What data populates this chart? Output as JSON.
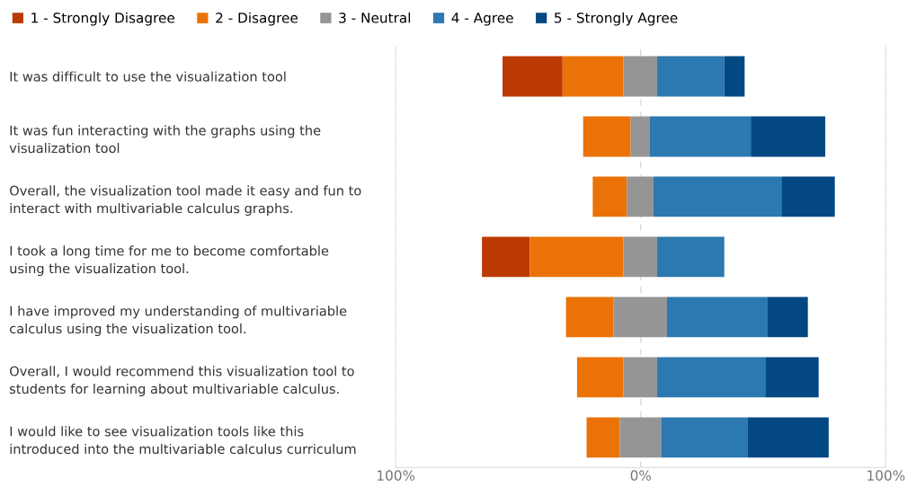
{
  "chart_data": {
    "type": "bar",
    "orientation": "horizontal",
    "stacked": true,
    "categories": [
      "It was difficult to use the visualization tool",
      "It was fun interacting with the graphs using the\nvisualization tool",
      "Overall, the visualization tool made it easy and fun to\ninteract with multivariable calculus graphs.",
      "I took a long time for me to become comfortable\nusing the visualization tool.",
      "I have improved my understanding of multivariable\ncalculus using the visualization tool.",
      "Overall, I would recommend this visualization tool to\nstudents for learning about multivariable calculus.",
      "I would like to see visualization tools like this\nintroduced into the multivariable calculus curriculum"
    ],
    "series": [
      {
        "name": "1 - Strongly Disagree",
        "color": "#bb3a03",
        "values": [
          24.5,
          null,
          null,
          19.5,
          null,
          null,
          null
        ],
        "base": [
          -56.4,
          null,
          null,
          -64.8,
          null,
          null,
          null
        ]
      },
      {
        "name": "2 - Disagree",
        "color": "#eb7206",
        "values": [
          24.8,
          19.4,
          13.9,
          38.2,
          19.3,
          18.9,
          13.5
        ],
        "base": [
          -31.9,
          -23.5,
          -19.6,
          -45.3,
          -30.5,
          -26.0,
          -22.1
        ]
      },
      {
        "name": "3 - Neutral",
        "color": "#959595",
        "values": [
          13.8,
          7.8,
          10.9,
          13.8,
          21.9,
          13.8,
          16.9
        ],
        "base": [
          -7.1,
          -4.1,
          -5.7,
          -7.1,
          -11.2,
          -7.1,
          -8.6
        ]
      },
      {
        "name": "4 - Agree",
        "color": "#2c78b0",
        "values": [
          27.4,
          41.2,
          52.2,
          27.4,
          41.1,
          44.1,
          35.2
        ],
        "base": [
          6.7,
          3.7,
          5.2,
          6.7,
          10.7,
          6.7,
          8.3
        ]
      },
      {
        "name": "5 - Strongly Agree",
        "color": "#034882",
        "values": [
          8.3,
          30.4,
          21.8,
          null,
          16.4,
          21.8,
          33.2
        ],
        "base": [
          34.1,
          44.9,
          57.4,
          null,
          51.8,
          50.8,
          43.5
        ]
      }
    ],
    "xlim": [
      -100,
      100
    ],
    "xticks": [
      {
        "value": -100,
        "label": "100%"
      },
      {
        "value": 0,
        "label": "0%"
      },
      {
        "value": 100,
        "label": "100%"
      }
    ],
    "grid": "x",
    "legend": "top left"
  }
}
